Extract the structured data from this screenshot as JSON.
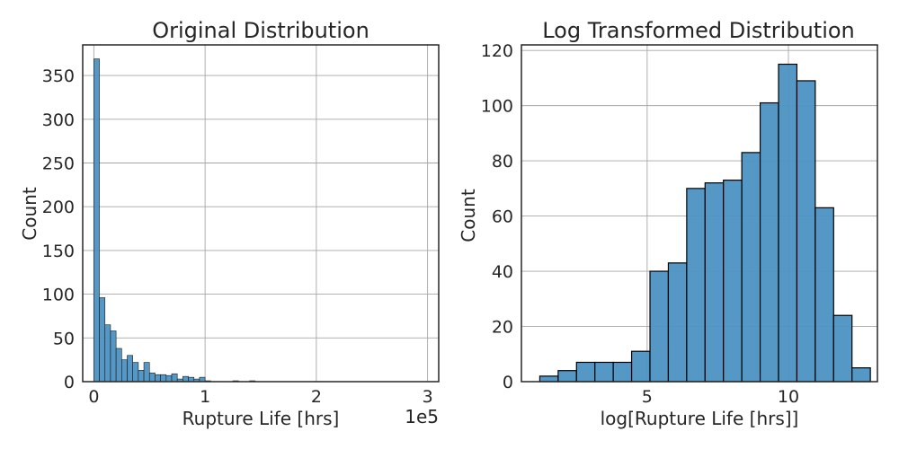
{
  "chart_data": [
    {
      "type": "bar",
      "title": "Original Distribution",
      "xlabel": "Rupture Life [hrs]",
      "ylabel": "Count",
      "x_offset_text": "1e5",
      "xlim": [
        -0.1,
        3.1
      ],
      "ylim": [
        0,
        385
      ],
      "x_ticks": [
        0,
        1,
        2,
        3
      ],
      "y_ticks": [
        0,
        50,
        100,
        150,
        200,
        250,
        300,
        350
      ],
      "bin_width": 0.05,
      "bin_start": 0.0,
      "values": [
        369,
        96,
        65,
        58,
        38,
        25,
        30,
        22,
        13,
        22,
        10,
        8,
        8,
        7,
        9,
        3,
        6,
        5,
        3,
        5,
        1,
        0,
        0,
        0,
        0,
        1,
        0,
        0,
        1,
        0,
        0,
        0,
        0,
        0,
        0,
        0,
        0,
        0,
        0,
        0,
        0,
        0,
        0,
        0,
        0,
        0,
        0,
        0,
        0,
        0,
        0,
        0,
        0,
        0,
        0,
        0,
        0,
        0,
        0
      ],
      "grid": true,
      "bar_color": "#4c92c3",
      "edge_color": "#1a1a1a"
    },
    {
      "type": "bar",
      "title": "Log Transformed Distribution",
      "xlabel": "log[Rupture Life [hrs]]",
      "ylabel": "Count",
      "xlim": [
        0.55,
        13.15
      ],
      "ylim": [
        0,
        122
      ],
      "x_ticks": [
        5,
        10
      ],
      "y_ticks": [
        0,
        20,
        40,
        60,
        80,
        100,
        120
      ],
      "bin_width": 0.65,
      "bin_start": 1.2,
      "values": [
        2,
        4,
        7,
        7,
        7,
        11,
        40,
        43,
        70,
        72,
        73,
        83,
        101,
        115,
        109,
        63,
        24,
        5
      ],
      "grid": true,
      "bar_color": "#4c92c3",
      "edge_color": "#000000"
    }
  ]
}
